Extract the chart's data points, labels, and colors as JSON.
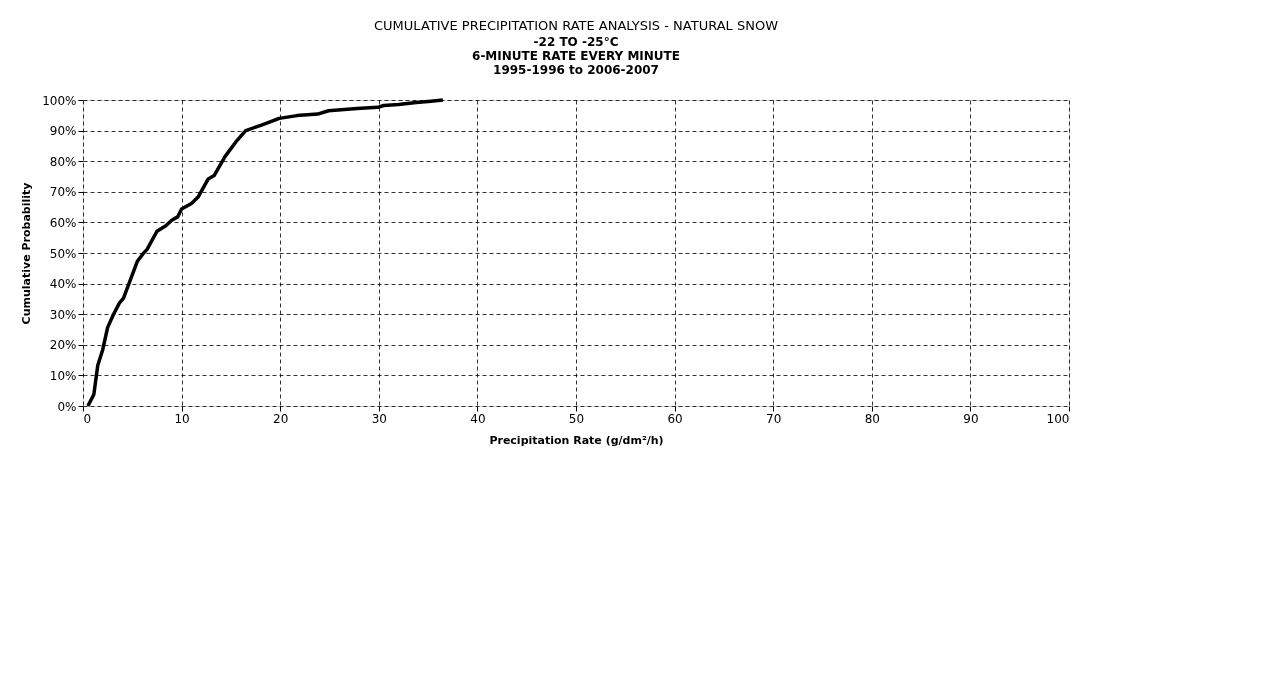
{
  "chart_data": {
    "type": "line",
    "title": "CUMULATIVE PRECIPITATION RATE ANALYSIS - NATURAL SNOW",
    "subtitle": [
      "-22 TO -25°C",
      "6-MINUTE RATE EVERY MINUTE",
      "1995-1996 to 2006-2007"
    ],
    "xlabel": "Precipitation Rate (g/dm²/h)",
    "ylabel": "Cumulative Probability",
    "x": [
      0.5,
      1.1,
      1.5,
      2.0,
      2.5,
      3.1,
      3.7,
      4.1,
      4.7,
      5.5,
      6.1,
      6.5,
      7.5,
      8.4,
      9.0,
      9.6,
      10.0,
      11.0,
      11.7,
      12.7,
      13.3,
      14.4,
      15.5,
      16.5,
      18.1,
      19.9,
      21.7,
      23.8,
      24.9,
      27.8,
      29.9,
      30.5,
      32.0,
      33.8,
      35.3,
      36.5
    ],
    "series": [
      {
        "color": "#000000",
        "values": [
          0,
          3.8,
          13.3,
          18.4,
          25.7,
          30,
          33.7,
          35.2,
          40.3,
          47.2,
          49.8,
          51.2,
          57.1,
          58.9,
          60.7,
          61.8,
          64.4,
          66.2,
          68.4,
          74.2,
          75.3,
          81.5,
          86.3,
          90,
          91.8,
          94.0,
          94.9,
          95.4,
          96.5,
          97.2,
          97.6,
          98.2,
          98.5,
          99.2,
          99.6,
          100
        ]
      }
    ],
    "xlim": [
      0,
      100
    ],
    "xticks": [
      0,
      10,
      20,
      30,
      40,
      50,
      60,
      70,
      80,
      90,
      100
    ],
    "ylim": [
      0,
      100
    ],
    "yticks": [
      {
        "value": 0,
        "label": "0%"
      },
      {
        "value": 10,
        "label": "10%"
      },
      {
        "value": 20,
        "label": "20%"
      },
      {
        "value": 30,
        "label": "30%"
      },
      {
        "value": 40,
        "label": "40%"
      },
      {
        "value": 50,
        "label": "50%"
      },
      {
        "value": 60,
        "label": "60%"
      },
      {
        "value": 70,
        "label": "70%"
      },
      {
        "value": 80,
        "label": "80%"
      },
      {
        "value": 90,
        "label": "90%"
      },
      {
        "value": 100,
        "label": "100%"
      }
    ],
    "grid": true,
    "line_style": "solid",
    "marker": "none",
    "legend": false
  }
}
